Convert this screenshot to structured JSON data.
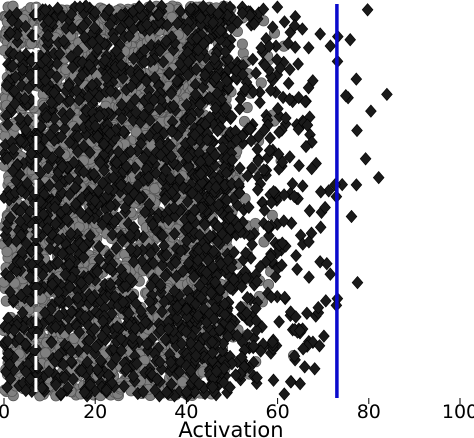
{
  "chart_data": {
    "type": "scatter",
    "title": "",
    "xlabel": "Activation",
    "ylabel": "",
    "xlim": [
      0,
      100
    ],
    "x_ticks": [
      0,
      20,
      40,
      60,
      80,
      100
    ],
    "x_tick_labels": [
      "0",
      "20",
      "40",
      "60",
      "80",
      "100"
    ],
    "show_y_axis": false,
    "grid": false,
    "legend": "none",
    "reference_lines": [
      {
        "x": 7,
        "style": "dashed",
        "color": "#ffffff"
      },
      {
        "x": 73,
        "style": "solid",
        "color": "#0a0acc"
      }
    ],
    "series": [
      {
        "marker": "circle",
        "color": "#808080",
        "edge_color": "#555555",
        "x_range": [
          0,
          75
        ],
        "approx_count": 3000
      },
      {
        "marker": "diamond",
        "color": "#1a1a1a",
        "edge_color": "#000000",
        "x_range": [
          0,
          95
        ],
        "approx_count": 2100
      }
    ]
  }
}
